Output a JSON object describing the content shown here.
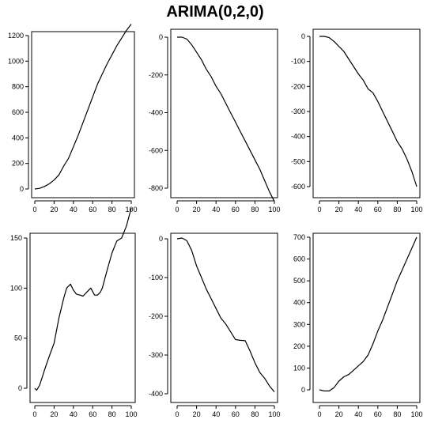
{
  "title": "ARIMA(0,2,0)",
  "chart_data": [
    {
      "type": "line",
      "x": [
        0,
        5,
        10,
        15,
        20,
        25,
        30,
        35,
        40,
        45,
        50,
        55,
        60,
        65,
        70,
        75,
        80,
        85,
        90,
        95,
        100
      ],
      "series": [
        {
          "values": [
            0,
            5,
            20,
            40,
            70,
            110,
            180,
            240,
            330,
            420,
            520,
            620,
            720,
            820,
            900,
            980,
            1050,
            1120,
            1180,
            1240,
            1290
          ]
        }
      ],
      "xlim": [
        0,
        100
      ],
      "ylim": [
        0,
        1300
      ],
      "xticks": [
        0,
        20,
        40,
        60,
        80,
        100
      ],
      "yticks": [
        0,
        200,
        400,
        600,
        800,
        1000,
        1200
      ],
      "xtick_labels": [
        "0",
        "20",
        "40",
        "60",
        "80",
        "100"
      ],
      "ytick_labels": [
        "0",
        "200",
        "400",
        "600",
        "800",
        "1000",
        "1200"
      ]
    },
    {
      "type": "line",
      "x": [
        0,
        5,
        10,
        15,
        20,
        25,
        30,
        35,
        40,
        45,
        50,
        55,
        60,
        65,
        70,
        75,
        80,
        85,
        90,
        95,
        100
      ],
      "series": [
        {
          "values": [
            0,
            0,
            -10,
            -40,
            -80,
            -120,
            -170,
            -210,
            -260,
            -300,
            -350,
            -400,
            -450,
            -500,
            -550,
            -600,
            -650,
            -700,
            -760,
            -820,
            -870
          ]
        }
      ],
      "xlim": [
        0,
        100
      ],
      "ylim": [
        -900,
        20
      ],
      "xticks": [
        0,
        20,
        40,
        60,
        80,
        100
      ],
      "yticks": [
        0,
        -200,
        -400,
        -600,
        -800
      ],
      "xtick_labels": [
        "0",
        "20",
        "40",
        "60",
        "80",
        "100"
      ],
      "ytick_labels": [
        "0",
        "-200",
        "-400",
        "-600",
        "-800"
      ]
    },
    {
      "type": "line",
      "x": [
        0,
        5,
        10,
        15,
        20,
        25,
        30,
        35,
        40,
        45,
        50,
        55,
        60,
        65,
        70,
        75,
        80,
        85,
        90,
        95,
        100
      ],
      "series": [
        {
          "values": [
            0,
            0,
            -5,
            -20,
            -40,
            -60,
            -90,
            -120,
            -150,
            -175,
            -210,
            -225,
            -260,
            -300,
            -340,
            -380,
            -420,
            -450,
            -490,
            -540,
            -600
          ]
        }
      ],
      "xlim": [
        0,
        100
      ],
      "ylim": [
        -620,
        10
      ],
      "xticks": [
        0,
        20,
        40,
        60,
        80,
        100
      ],
      "yticks": [
        0,
        -100,
        -200,
        -300,
        -400,
        -500,
        -600
      ],
      "xtick_labels": [
        "0",
        "20",
        "40",
        "60",
        "80",
        "100"
      ],
      "ytick_labels": [
        "0",
        "-100",
        "-200",
        "-300",
        "-400",
        "-500",
        "-600"
      ]
    },
    {
      "type": "line",
      "x": [
        0,
        2,
        5,
        8,
        10,
        15,
        20,
        25,
        30,
        33,
        37,
        40,
        43,
        47,
        50,
        55,
        58,
        62,
        65,
        68,
        70,
        75,
        80,
        85,
        90,
        95,
        100
      ],
      "series": [
        {
          "values": [
            0,
            -2,
            3,
            12,
            18,
            32,
            45,
            70,
            90,
            100,
            104,
            98,
            94,
            93,
            92,
            97,
            100,
            93,
            93,
            96,
            100,
            118,
            135,
            147,
            150,
            162,
            180
          ]
        }
      ],
      "xlim": [
        0,
        100
      ],
      "ylim": [
        -5,
        182
      ],
      "xticks": [
        0,
        20,
        40,
        60,
        80,
        100
      ],
      "yticks": [
        0,
        50,
        100,
        150
      ],
      "xtick_labels": [
        "0",
        "20",
        "40",
        "60",
        "80",
        "100"
      ],
      "ytick_labels": [
        "0",
        "50",
        "100",
        "150"
      ]
    },
    {
      "type": "line",
      "x": [
        0,
        5,
        10,
        15,
        20,
        25,
        30,
        35,
        40,
        45,
        50,
        55,
        60,
        65,
        70,
        75,
        80,
        85,
        90,
        95,
        100
      ],
      "series": [
        {
          "values": [
            0,
            2,
            -5,
            -30,
            -70,
            -100,
            -130,
            -155,
            -180,
            -205,
            -220,
            -240,
            -260,
            -262,
            -263,
            -290,
            -320,
            -345,
            -360,
            -380,
            -395
          ]
        }
      ],
      "xlim": [
        0,
        100
      ],
      "ylim": [
        -405,
        8
      ],
      "xticks": [
        0,
        20,
        40,
        60,
        80,
        100
      ],
      "yticks": [
        0,
        -100,
        -200,
        -300,
        -400
      ],
      "xtick_labels": [
        "0",
        "20",
        "40",
        "60",
        "80",
        "100"
      ],
      "ytick_labels": [
        "0",
        "-100",
        "-200",
        "-300",
        "-400"
      ]
    },
    {
      "type": "line",
      "x": [
        0,
        5,
        10,
        15,
        20,
        25,
        30,
        35,
        40,
        45,
        50,
        55,
        60,
        65,
        70,
        75,
        80,
        85,
        90,
        95,
        100
      ],
      "series": [
        {
          "values": [
            0,
            -5,
            -5,
            10,
            40,
            60,
            70,
            90,
            110,
            130,
            160,
            210,
            270,
            320,
            380,
            440,
            500,
            550,
            600,
            650,
            700
          ]
        }
      ],
      "xlim": [
        0,
        100
      ],
      "ylim": [
        -15,
        710
      ],
      "xticks": [
        0,
        20,
        40,
        60,
        80,
        100
      ],
      "yticks": [
        0,
        100,
        200,
        300,
        400,
        500,
        600,
        700
      ],
      "xtick_labels": [
        "0",
        "20",
        "40",
        "60",
        "80",
        "100"
      ],
      "ytick_labels": [
        "0",
        "100",
        "200",
        "300",
        "400",
        "500",
        "600",
        "700"
      ]
    }
  ]
}
